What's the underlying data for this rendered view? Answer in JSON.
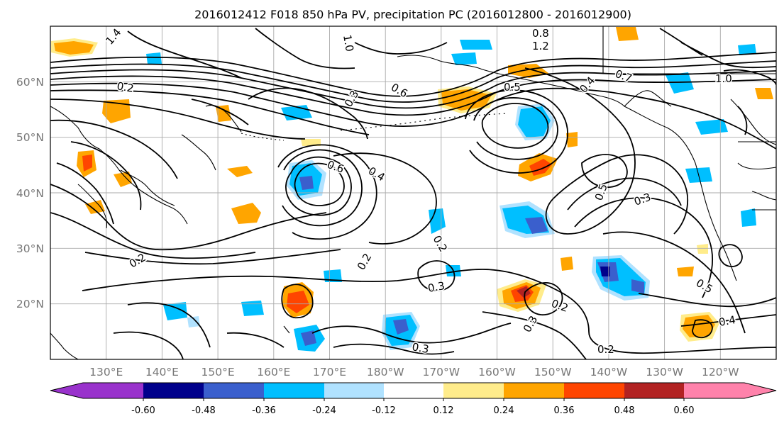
{
  "title": "2016012412 F018 850 hPa PV, precipitation PC (2016012800 - 2016012900)",
  "map": {
    "lat_labels": [
      "60°N",
      "50°N",
      "40°N",
      "30°N",
      "20°N"
    ],
    "lon_labels": [
      "130°E",
      "140°E",
      "150°E",
      "160°E",
      "170°E",
      "180°W",
      "170°W",
      "160°W",
      "150°W",
      "140°W",
      "130°W",
      "120°W"
    ],
    "grid": true,
    "contour_labels": [
      "1.4",
      "1.0",
      "0.8",
      "1.2",
      "0.7",
      "0.4",
      "0.6",
      "0.2",
      "0.3",
      "0.5",
      "0.6",
      "0.4",
      "0.3",
      "0.2",
      "0.2",
      "0.3",
      "0.2",
      "0.5",
      "0.4",
      "0.2",
      "0.3",
      "0.2",
      "1.0",
      "0.3",
      "0.5"
    ]
  },
  "colorbar": {
    "ticks": [
      "-0.60",
      "-0.48",
      "-0.36",
      "-0.24",
      "-0.12",
      "0.12",
      "0.24",
      "0.36",
      "0.48",
      "0.60"
    ],
    "colors": [
      "#9932CC",
      "#00008B",
      "#3A5FCD",
      "#00BFFF",
      "#B0E2FF",
      "#FFFFFF",
      "#FFEC8B",
      "#FFA500",
      "#FF4500",
      "#B22222",
      "#FF82AB"
    ]
  },
  "chart_data": {
    "type": "heatmap",
    "title": "2016012412 F018 850 hPa PV, precipitation PC (2016012800 - 2016012900)",
    "xlabel": "",
    "ylabel": "",
    "lon_range": [
      120,
      250
    ],
    "lat_range": [
      10,
      70
    ],
    "colorbar_levels": [
      -0.6,
      -0.48,
      -0.36,
      -0.24,
      -0.12,
      0.12,
      0.24,
      0.36,
      0.48,
      0.6
    ],
    "pv_contour_levels": [
      0.2,
      0.3,
      0.4,
      0.5,
      0.6,
      0.7,
      0.8,
      1.0,
      1.2,
      1.4
    ]
  }
}
